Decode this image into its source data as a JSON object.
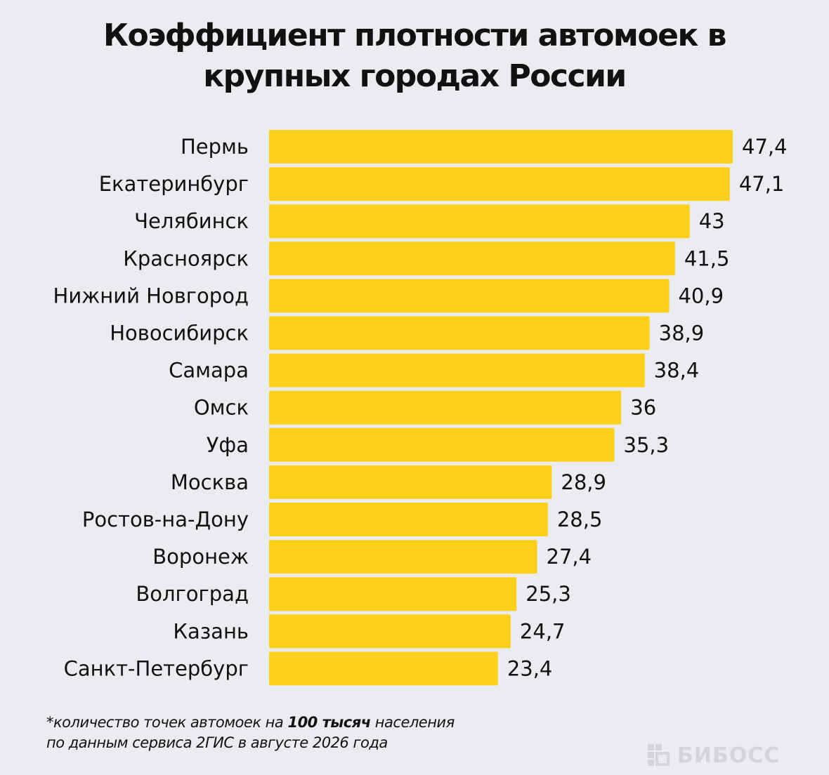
{
  "title": {
    "line1": "Коэффициент плотности автомоек в",
    "line2": "крупных городах России"
  },
  "footnote": {
    "line1_before": "*количество точек автомоек на ",
    "line1_bold": "100 тысяч",
    "line1_after": " населения",
    "line2": "по данным сервиса 2ГИС в августе 2026 года"
  },
  "logo": {
    "text": "БИБОСС",
    "icon": "bibos-logo-icon"
  },
  "colors": {
    "background": "#ebecf0",
    "bar": "#fbd01c",
    "text": "#111111"
  },
  "chart_data": {
    "type": "bar",
    "orientation": "horizontal",
    "title": "Коэффициент плотности автомоек в крупных городах России",
    "categories": [
      "Пермь",
      "Екатеринбург",
      "Челябинск",
      "Красноярск",
      "Нижний Новгород",
      "Новосибирск",
      "Самара",
      "Омск",
      "Уфа",
      "Москва",
      "Ростов-на-Дону",
      "Воронеж",
      "Волгоград",
      "Казань",
      "Санкт-Петербург"
    ],
    "values": [
      47.4,
      47.1,
      43,
      41.5,
      40.9,
      38.9,
      38.4,
      36,
      35.3,
      28.9,
      28.5,
      27.4,
      25.3,
      24.7,
      23.4
    ],
    "value_labels": [
      "47,4",
      "47,1",
      "43",
      "41,5",
      "40,9",
      "38,9",
      "38,4",
      "36",
      "35,3",
      "28,9",
      "28,5",
      "27,4",
      "25,3",
      "24,7",
      "23,4"
    ],
    "xlim": [
      0,
      47.4
    ],
    "grid": false,
    "legend": "none",
    "data_labels": true
  }
}
